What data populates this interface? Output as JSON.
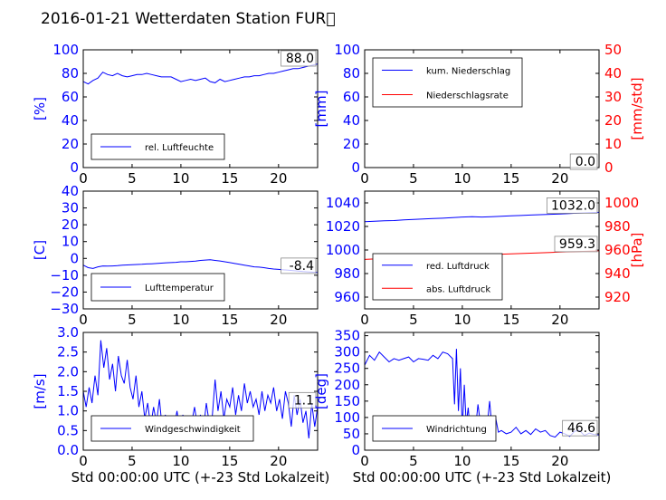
{
  "title": "2016-01-21 Wetterdaten Station FUR\u0000",
  "colors": {
    "primary": "#0000ff",
    "secondary": "#ff0000",
    "axis": "#000000"
  },
  "chart_data": [
    {
      "type": "line",
      "id": "humidity",
      "ylabel": "[%]",
      "ylim": [
        0,
        100
      ],
      "yticks": [
        0,
        20,
        40,
        60,
        80,
        100
      ],
      "xlim": [
        0,
        24
      ],
      "xticks": [
        0,
        5,
        10,
        15,
        20
      ],
      "legend": [
        "rel. Luftfeuchte"
      ],
      "legend_position": "lower-left",
      "value_label": "88.0",
      "series": [
        {
          "name": "rel. Luftfeuchte",
          "color": "#0000ff",
          "x": [
            0,
            0.5,
            1,
            1.5,
            2,
            2.5,
            3,
            3.5,
            4,
            4.5,
            5,
            5.5,
            6,
            6.5,
            7,
            7.5,
            8,
            8.5,
            9,
            9.5,
            10,
            10.5,
            11,
            11.5,
            12,
            12.5,
            13,
            13.5,
            14,
            14.5,
            15,
            15.5,
            16,
            16.5,
            17,
            17.5,
            18,
            18.5,
            19,
            19.5,
            20,
            20.5,
            21,
            21.5,
            22,
            22.5,
            23,
            23.5,
            24
          ],
          "y": [
            73,
            71,
            74,
            76,
            81,
            79,
            78,
            80,
            78,
            77,
            78,
            79,
            79,
            80,
            79,
            78,
            77,
            77,
            77,
            75,
            73,
            74,
            75,
            74,
            75,
            76,
            73,
            72,
            75,
            73,
            74,
            75,
            76,
            77,
            77,
            78,
            78,
            79,
            80,
            80,
            81,
            82,
            83,
            84,
            84,
            85,
            86,
            87,
            88
          ]
        }
      ]
    },
    {
      "type": "line",
      "id": "precipitation",
      "ylabel": "[mm]",
      "ylabel_right": "[mm/std]",
      "ylim": [
        0,
        100
      ],
      "yticks": [
        0,
        20,
        40,
        60,
        80,
        100
      ],
      "ylim_right": [
        0,
        50
      ],
      "yticks_right": [
        0,
        10,
        20,
        30,
        40,
        50
      ],
      "xlim": [
        0,
        24
      ],
      "xticks": [
        0,
        5,
        10,
        15,
        20
      ],
      "legend": [
        "kum. Niederschlag",
        "Niederschlagsrate"
      ],
      "legend_position": "upper-left",
      "value_label": "0.0",
      "series": [
        {
          "name": "kum. Niederschlag",
          "color": "#0000ff",
          "x": [
            0,
            24
          ],
          "y": [
            0,
            0
          ]
        },
        {
          "name": "Niederschlagsrate",
          "color": "#ff0000",
          "x": [
            0,
            24
          ],
          "y": [
            0,
            0
          ],
          "axis": "right"
        }
      ]
    },
    {
      "type": "line",
      "id": "temperature",
      "ylabel": "[C]",
      "ylim": [
        -30,
        40
      ],
      "yticks": [
        -30,
        -20,
        -10,
        0,
        10,
        20,
        30,
        40
      ],
      "xlim": [
        0,
        24
      ],
      "xticks": [
        0,
        5,
        10,
        15,
        20
      ],
      "legend": [
        "Lufttemperatur"
      ],
      "legend_position": "lower-left",
      "value_label": "-8.4",
      "series": [
        {
          "name": "Lufttemperatur",
          "color": "#0000ff",
          "x": [
            0,
            0.5,
            1,
            1.5,
            2,
            2.5,
            3,
            3.5,
            4,
            4.5,
            5,
            5.5,
            6,
            6.5,
            7,
            7.5,
            8,
            8.5,
            9,
            9.5,
            10,
            10.5,
            11,
            11.5,
            12,
            12.5,
            13,
            13.5,
            14,
            14.5,
            15,
            15.5,
            16,
            16.5,
            17,
            17.5,
            18,
            18.5,
            19,
            19.5,
            20,
            20.5,
            21,
            21.5,
            22,
            22.5,
            23,
            23.5,
            24
          ],
          "y": [
            -4,
            -5.5,
            -6,
            -5,
            -4.5,
            -4.6,
            -4.5,
            -4.3,
            -4,
            -3.9,
            -3.8,
            -3.6,
            -3.5,
            -3.3,
            -3.2,
            -3,
            -2.8,
            -2.6,
            -2.5,
            -2.3,
            -2,
            -2,
            -1.8,
            -1.6,
            -1.2,
            -1,
            -0.8,
            -1.2,
            -1.5,
            -2,
            -2.5,
            -3,
            -3.5,
            -4,
            -4.5,
            -5,
            -5.2,
            -5.5,
            -6,
            -6.3,
            -6.5,
            -6.8,
            -7,
            -7.2,
            -7.5,
            -7.8,
            -8,
            -8.2,
            -8.4
          ]
        }
      ]
    },
    {
      "type": "line",
      "id": "pressure",
      "ylabel": "",
      "ylabel_right": "[hPa]",
      "ylim": [
        950,
        1050
      ],
      "yticks": [
        960,
        980,
        1000,
        1020,
        1040
      ],
      "ylim_right": [
        910,
        1010
      ],
      "yticks_right": [
        920,
        940,
        960,
        980,
        1000
      ],
      "xlim": [
        0,
        24
      ],
      "xticks": [
        0,
        5,
        10,
        15,
        20
      ],
      "legend": [
        "red. Luftdruck",
        "abs. Luftdruck"
      ],
      "legend_position": "lower-left",
      "value_label": "1032.0",
      "value_label_right": "959.3",
      "series": [
        {
          "name": "red. Luftdruck",
          "color": "#0000ff",
          "x": [
            0,
            1,
            2,
            3,
            4,
            5,
            6,
            7,
            8,
            9,
            10,
            11,
            12,
            13,
            14,
            15,
            16,
            17,
            18,
            19,
            20,
            21,
            22,
            23,
            24
          ],
          "y": [
            1024,
            1024.5,
            1024.8,
            1025,
            1025.5,
            1026,
            1026.3,
            1026.7,
            1027,
            1027.5,
            1028,
            1028.2,
            1028,
            1028.3,
            1028.6,
            1029,
            1029.3,
            1029.7,
            1030,
            1030.3,
            1030.6,
            1031,
            1031.4,
            1031.7,
            1032
          ]
        },
        {
          "name": "abs. Luftdruck",
          "color": "#ff0000",
          "axis": "right",
          "x": [
            0,
            1,
            2,
            3,
            4,
            5,
            6,
            7,
            8,
            9,
            10,
            11,
            12,
            13,
            14,
            15,
            16,
            17,
            18,
            19,
            20,
            21,
            22,
            23,
            24
          ],
          "y": [
            952,
            952.4,
            952.8,
            953.1,
            953.5,
            953.8,
            954.1,
            954.5,
            954.8,
            955.2,
            955.6,
            955.9,
            956,
            956.2,
            956.5,
            956.8,
            957,
            957.3,
            957.6,
            957.9,
            958.2,
            958.5,
            958.8,
            959.1,
            959.3
          ]
        }
      ]
    },
    {
      "type": "line",
      "id": "windspeed",
      "ylabel": "[m/s]",
      "xlabel": "Std 00:00:00 UTC (+-23 Std Lokalzeit)",
      "ylim": [
        0,
        3
      ],
      "yticks": [
        0.0,
        0.5,
        1.0,
        1.5,
        2.0,
        2.5,
        3.0
      ],
      "xlim": [
        0,
        24
      ],
      "xticks": [
        0,
        5,
        10,
        15,
        20
      ],
      "legend": [
        "Windgeschwindigkeit"
      ],
      "legend_position": "lower-left",
      "value_label": "1.1",
      "series": [
        {
          "name": "Windgeschwindigkeit",
          "color": "#0000ff",
          "x": [
            0,
            0.3,
            0.6,
            0.9,
            1.2,
            1.5,
            1.8,
            2.1,
            2.4,
            2.7,
            3,
            3.3,
            3.6,
            3.9,
            4.2,
            4.5,
            4.8,
            5.1,
            5.4,
            5.7,
            6,
            6.3,
            6.6,
            6.9,
            7.2,
            7.5,
            7.8,
            8.1,
            8.4,
            8.7,
            9,
            9.3,
            9.6,
            9.9,
            10.2,
            10.5,
            10.8,
            11.1,
            11.4,
            11.7,
            12,
            12.3,
            12.6,
            12.9,
            13.2,
            13.5,
            13.8,
            14.1,
            14.4,
            14.7,
            15,
            15.3,
            15.6,
            15.9,
            16.2,
            16.5,
            16.8,
            17.1,
            17.4,
            17.7,
            18,
            18.3,
            18.6,
            18.9,
            19.2,
            19.5,
            19.8,
            20.1,
            20.4,
            20.7,
            21,
            21.3,
            21.6,
            21.9,
            22.2,
            22.5,
            22.8,
            23.1,
            23.4,
            23.7,
            24
          ],
          "y": [
            1.5,
            1.1,
            1.6,
            1.2,
            1.9,
            1.4,
            2.8,
            2.1,
            2.6,
            1.8,
            2.2,
            1.5,
            2.4,
            1.9,
            1.7,
            2.3,
            1.6,
            1.3,
            1.9,
            1.1,
            1.5,
            0.8,
            1.2,
            0.6,
            1.1,
            0.7,
            1.3,
            0.5,
            0.9,
            0.4,
            0.8,
            0.6,
            1.0,
            0.5,
            0.9,
            0.4,
            0.8,
            0.7,
            1.1,
            0.6,
            0.9,
            0.5,
            1.2,
            0.7,
            0.8,
            1.8,
            1.0,
            1.5,
            0.8,
            1.3,
            1.1,
            1.6,
            0.9,
            1.4,
            1.0,
            1.7,
            1.2,
            1.5,
            1.1,
            1.3,
            0.9,
            1.5,
            1.0,
            1.4,
            1.2,
            1.6,
            1.0,
            1.3,
            0.8,
            1.5,
            1.2,
            0.6,
            1.4,
            0.9,
            1.3,
            0.7,
            1.0,
            0.3,
            1.2,
            0.6,
            1.1
          ]
        }
      ]
    },
    {
      "type": "line",
      "id": "winddirection",
      "ylabel": "[deg]",
      "xlabel": "Std 00:00:00 UTC (+-23 Std Lokalzeit)",
      "ylim": [
        0,
        360
      ],
      "yticks": [
        0,
        50,
        100,
        150,
        200,
        250,
        300,
        350
      ],
      "xlim": [
        0,
        24
      ],
      "xticks": [
        0,
        5,
        10,
        15,
        20
      ],
      "legend": [
        "Windrichtung"
      ],
      "legend_position": "lower-left",
      "value_label": "46.6",
      "series": [
        {
          "name": "Windrichtung",
          "color": "#0000ff",
          "x": [
            0,
            0.5,
            1,
            1.5,
            2,
            2.5,
            3,
            3.5,
            4,
            4.5,
            5,
            5.5,
            6,
            6.5,
            7,
            7.5,
            8,
            8.5,
            9,
            9.2,
            9.4,
            9.6,
            9.8,
            10,
            10.2,
            10.4,
            10.6,
            10.8,
            11,
            11.3,
            11.6,
            11.9,
            12.2,
            12.5,
            12.8,
            13.1,
            13.4,
            13.7,
            14,
            14.5,
            15,
            15.5,
            16,
            16.5,
            17,
            17.5,
            18,
            18.5,
            19,
            19.5,
            20,
            20.5,
            21,
            21.5,
            22,
            22.5,
            23,
            23.5,
            24
          ],
          "y": [
            260,
            290,
            275,
            300,
            285,
            270,
            280,
            275,
            280,
            285,
            270,
            280,
            278,
            275,
            290,
            280,
            300,
            295,
            280,
            140,
            310,
            120,
            250,
            60,
            200,
            80,
            130,
            60,
            90,
            50,
            140,
            70,
            100,
            60,
            150,
            45,
            100,
            55,
            60,
            50,
            55,
            70,
            50,
            60,
            48,
            65,
            55,
            60,
            45,
            40,
            55,
            50,
            42,
            58,
            60,
            45,
            52,
            48,
            46.6
          ]
        }
      ]
    }
  ]
}
